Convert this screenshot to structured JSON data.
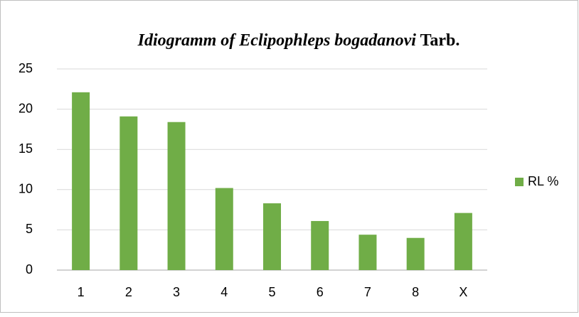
{
  "chart_data": {
    "type": "bar",
    "title": [
      "Idiogramm of  Eclipophleps bogadanovi",
      "Tarb."
    ],
    "categories": [
      "1",
      "2",
      "3",
      "4",
      "5",
      "6",
      "7",
      "8",
      "X"
    ],
    "series": [
      {
        "name": "RL %",
        "color": "#70ad47",
        "values": [
          22.1,
          19.1,
          18.4,
          10.2,
          8.3,
          6.1,
          4.4,
          4.0,
          7.1
        ]
      }
    ],
    "ylim": [
      0,
      25
    ],
    "yticks": [
      0,
      5,
      10,
      15,
      20,
      25
    ],
    "grid": true,
    "legend": "right"
  }
}
